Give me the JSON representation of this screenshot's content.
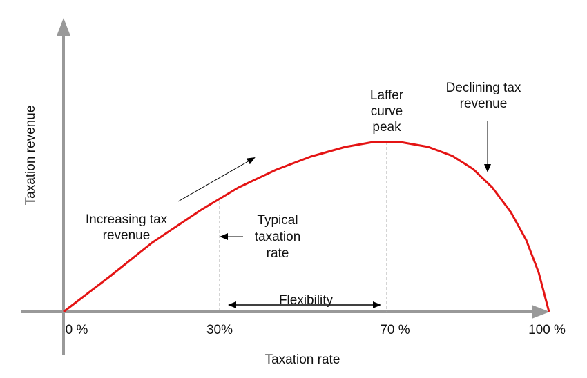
{
  "axes": {
    "y_label": "Taxation revenue",
    "x_label": "Taxation rate",
    "x_ticks": [
      "0 %",
      "30%",
      "70 %",
      "100 %"
    ]
  },
  "annotations": {
    "peak": [
      "Laffer",
      "curve",
      "peak"
    ],
    "declining": [
      "Declining tax",
      "revenue"
    ],
    "increasing": [
      "Increasing tax",
      "revenue"
    ],
    "typical": [
      "Typical",
      "taxation",
      "rate"
    ],
    "flexibility": "Flexibility"
  }
}
